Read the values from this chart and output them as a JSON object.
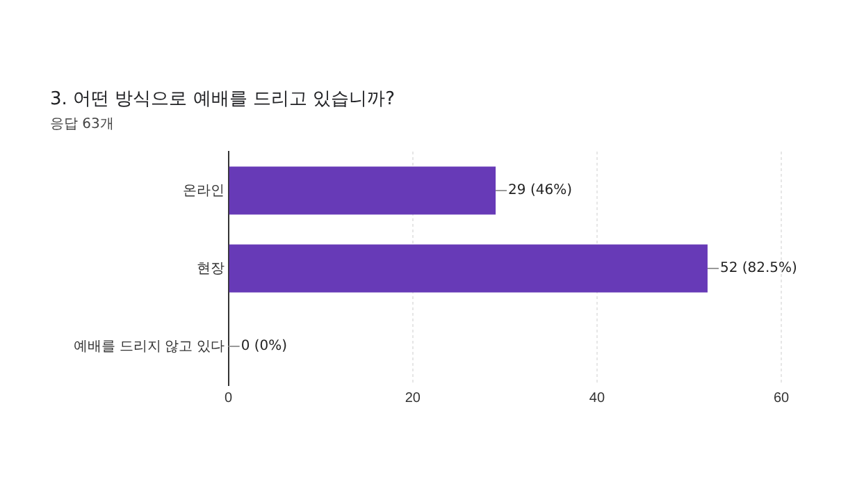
{
  "chart_data": {
    "type": "bar",
    "orientation": "horizontal",
    "title": "3. 어떤 방식으로 예배를 드리고 있습니까?",
    "subtitle": "응답 63개",
    "categories": [
      "온라인",
      "현장",
      "예배를 드리지 않고 있다"
    ],
    "values": [
      29,
      52,
      0
    ],
    "color": "#673ab7",
    "value_labels": [
      "29 (46%)",
      "52 (82.5%)",
      "0 (0%)"
    ],
    "xlim": [
      0,
      60
    ],
    "xticks": [
      0,
      20,
      40,
      60
    ],
    "grid": "x"
  }
}
